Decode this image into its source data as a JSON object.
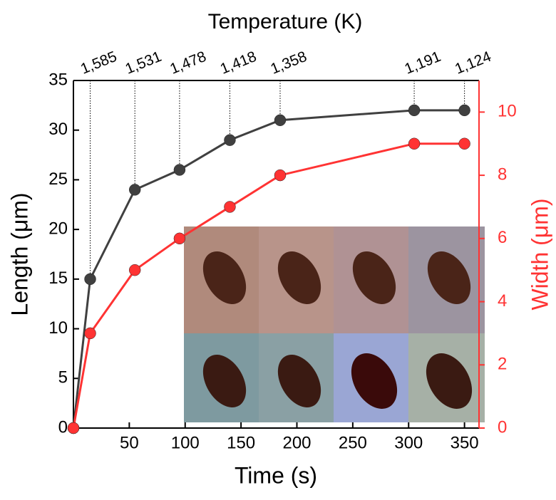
{
  "chart_data": {
    "type": "line",
    "title": "Temperature (K)",
    "x_label": "Time (s)",
    "y_label": "Length (μm)",
    "y2_label": "Width (μm)",
    "x": [
      0,
      15,
      55,
      95,
      140,
      185,
      305,
      350
    ],
    "series": [
      {
        "color": "#404040",
        "values": [
          0,
          15,
          24,
          26,
          29,
          31,
          32,
          32
        ]
      },
      {
        "color": "#ff3333",
        "values": [
          0,
          3,
          5,
          6,
          7,
          8,
          9,
          9
        ],
        "axis": "y2"
      }
    ],
    "xlim": [
      0,
      363
    ],
    "xticks": [
      50,
      100,
      150,
      200,
      250,
      300,
      350
    ],
    "top_ticks": [
      {
        "value": 15,
        "label": "1,585"
      },
      {
        "value": 55,
        "label": "1,531"
      },
      {
        "value": 95,
        "label": "1,478"
      },
      {
        "value": 140,
        "label": "1,418"
      },
      {
        "value": 185,
        "label": "1,358"
      },
      {
        "value": 305,
        "label": "1,191"
      },
      {
        "value": 350,
        "label": "1,124"
      }
    ],
    "ylim": [
      0,
      35
    ],
    "yticks": [
      0,
      5,
      10,
      15,
      20,
      25,
      30,
      35
    ],
    "y2lim": [
      0,
      11
    ],
    "y2ticks": [
      0,
      2,
      4,
      6,
      8,
      10
    ]
  }
}
